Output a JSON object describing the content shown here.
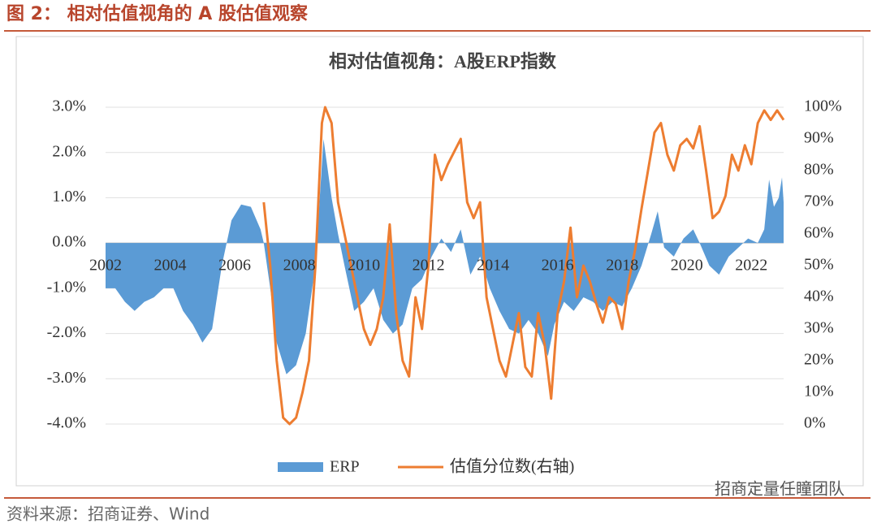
{
  "header": {
    "title": "图 2： 相对估值视角的 A 股估值观察"
  },
  "footer": {
    "source": "资料来源：招商证券、Wind"
  },
  "watermark": "招商定量任瞳团队",
  "chart_data": {
    "type": "combo",
    "title": "相对估值视角：A股ERP指数",
    "xlim": [
      2002,
      2023
    ],
    "xticks": [
      2002,
      2004,
      2006,
      2008,
      2010,
      2012,
      2014,
      2016,
      2018,
      2020,
      2022
    ],
    "ylim": [
      -4,
      3
    ],
    "yticks": [
      {
        "value": 3,
        "label": "3.0%"
      },
      {
        "value": 2,
        "label": "2.0%"
      },
      {
        "value": 1,
        "label": "1.0%"
      },
      {
        "value": 0,
        "label": "0.0%"
      },
      {
        "value": -1,
        "label": "-1.0%"
      },
      {
        "value": -2,
        "label": "-2.0%"
      },
      {
        "value": -3,
        "label": "-3.0%"
      },
      {
        "value": -4,
        "label": "-4.0%"
      }
    ],
    "y2lim": [
      0,
      100
    ],
    "y2ticks": [
      {
        "value": 100,
        "label": "100%"
      },
      {
        "value": 90,
        "label": "90%"
      },
      {
        "value": 80,
        "label": "80%"
      },
      {
        "value": 70,
        "label": "70%"
      },
      {
        "value": 60,
        "label": "60%"
      },
      {
        "value": 50,
        "label": "50%"
      },
      {
        "value": 40,
        "label": "40%"
      },
      {
        "value": 30,
        "label": "30%"
      },
      {
        "value": 20,
        "label": "20%"
      },
      {
        "value": 10,
        "label": "10%"
      },
      {
        "value": 0,
        "label": "0%"
      }
    ],
    "grid": true,
    "legend": "bottom",
    "series": [
      {
        "name": "ERP",
        "type": "area",
        "color": "#5b9bd5",
        "x": [
          2002.0,
          2002.3,
          2002.6,
          2002.9,
          2003.2,
          2003.5,
          2003.8,
          2004.1,
          2004.4,
          2004.7,
          2005.0,
          2005.3,
          2005.6,
          2005.9,
          2006.2,
          2006.5,
          2006.8,
          2006.9,
          2007.1,
          2007.3,
          2007.6,
          2007.9,
          2008.2,
          2008.5,
          2008.75,
          2009.0,
          2009.2,
          2009.4,
          2009.7,
          2010.0,
          2010.3,
          2010.6,
          2010.9,
          2011.2,
          2011.5,
          2011.8,
          2012.1,
          2012.4,
          2012.7,
          2013.0,
          2013.3,
          2013.6,
          2013.9,
          2014.2,
          2014.5,
          2014.8,
          2015.1,
          2015.4,
          2015.7,
          2015.9,
          2016.2,
          2016.5,
          2016.8,
          2017.1,
          2017.4,
          2017.7,
          2018.0,
          2018.3,
          2018.6,
          2018.9,
          2019.1,
          2019.3,
          2019.6,
          2019.9,
          2020.2,
          2020.4,
          2020.7,
          2021.0,
          2021.3,
          2021.6,
          2021.9,
          2022.2,
          2022.4,
          2022.55,
          2022.7,
          2022.85,
          2022.95,
          2023.0
        ],
        "values": [
          -1.0,
          -1.0,
          -1.3,
          -1.5,
          -1.3,
          -1.2,
          -1.0,
          -1.0,
          -1.5,
          -1.8,
          -2.2,
          -1.9,
          -0.5,
          0.5,
          0.85,
          0.8,
          0.3,
          0.0,
          -1.0,
          -2.2,
          -2.9,
          -2.7,
          -2.0,
          -0.5,
          2.3,
          1.0,
          0.2,
          -0.5,
          -1.5,
          -1.3,
          -1.0,
          -1.7,
          -2.0,
          -1.8,
          -1.0,
          -0.8,
          -0.3,
          0.1,
          -0.2,
          0.3,
          -0.7,
          -0.3,
          -1.0,
          -1.5,
          -1.9,
          -2.0,
          -1.7,
          -2.0,
          -2.5,
          -1.8,
          -1.3,
          -1.5,
          -1.2,
          -1.3,
          -1.5,
          -1.3,
          -1.4,
          -1.0,
          -0.5,
          0.2,
          0.7,
          -0.1,
          -0.3,
          0.1,
          0.3,
          0.0,
          -0.5,
          -0.7,
          -0.3,
          -0.1,
          0.1,
          0.0,
          0.3,
          1.4,
          0.8,
          1.0,
          1.45,
          0.9
        ]
      },
      {
        "name": "估值分位数(右轴)",
        "type": "line",
        "color": "#ed7d31",
        "axis": "y2",
        "x": [
          2006.9,
          2007.1,
          2007.3,
          2007.5,
          2007.7,
          2007.9,
          2008.1,
          2008.3,
          2008.5,
          2008.7,
          2008.8,
          2009.0,
          2009.2,
          2009.4,
          2009.6,
          2009.8,
          2010.0,
          2010.2,
          2010.4,
          2010.6,
          2010.8,
          2011.0,
          2011.2,
          2011.4,
          2011.6,
          2011.8,
          2012.0,
          2012.2,
          2012.4,
          2012.6,
          2012.8,
          2013.0,
          2013.2,
          2013.4,
          2013.6,
          2013.8,
          2014.0,
          2014.2,
          2014.4,
          2014.6,
          2014.8,
          2015.0,
          2015.2,
          2015.4,
          2015.6,
          2015.8,
          2016.0,
          2016.2,
          2016.4,
          2016.6,
          2016.8,
          2017.0,
          2017.2,
          2017.4,
          2017.6,
          2017.8,
          2018.0,
          2018.2,
          2018.4,
          2018.6,
          2018.8,
          2019.0,
          2019.2,
          2019.4,
          2019.6,
          2019.8,
          2020.0,
          2020.2,
          2020.4,
          2020.6,
          2020.8,
          2021.0,
          2021.2,
          2021.4,
          2021.6,
          2021.8,
          2022.0,
          2022.2,
          2022.4,
          2022.6,
          2022.8,
          2023.0
        ],
        "values": [
          70,
          50,
          20,
          2,
          0,
          2,
          10,
          20,
          50,
          95,
          100,
          95,
          70,
          60,
          50,
          40,
          30,
          25,
          30,
          40,
          63,
          35,
          20,
          15,
          40,
          30,
          50,
          85,
          77,
          82,
          86,
          90,
          70,
          65,
          70,
          40,
          30,
          20,
          15,
          25,
          35,
          18,
          15,
          35,
          25,
          8,
          35,
          45,
          62,
          40,
          50,
          45,
          38,
          32,
          40,
          38,
          30,
          45,
          55,
          68,
          80,
          92,
          95,
          85,
          80,
          88,
          90,
          87,
          94,
          80,
          65,
          67,
          72,
          85,
          80,
          88,
          82,
          95,
          99,
          96,
          99,
          96
        ]
      }
    ]
  }
}
